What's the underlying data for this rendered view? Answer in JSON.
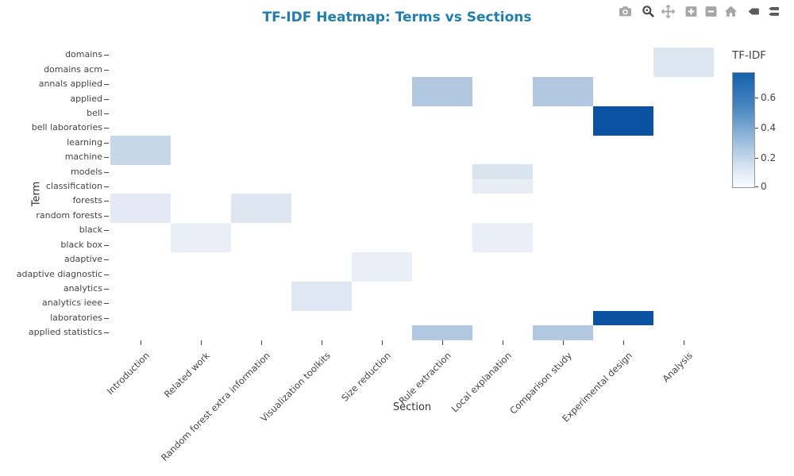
{
  "title": "TF-IDF Heatmap: Terms vs Sections",
  "modebar": {
    "icons": [
      "camera",
      "zoom",
      "pan",
      "zoom-in",
      "zoom-out",
      "home",
      "hover-closest",
      "hover-compare"
    ]
  },
  "chart_data": {
    "type": "heatmap",
    "title": "TF-IDF Heatmap: Terms vs Sections",
    "xlabel": "Section",
    "ylabel": "Term",
    "x_categories": [
      "Introduction",
      "Related work",
      "Random forest extra information",
      "Visualization toolkits",
      "Size reduction",
      "Rule extraction",
      "Local explanation",
      "Comparison study",
      "Experimental design",
      "Analysis"
    ],
    "y_categories": [
      "domains",
      "domains acm",
      "annals applied",
      "applied",
      "bell",
      "bell laboratories",
      "learning",
      "machine",
      "models",
      "classification",
      "forests",
      "random forests",
      "black",
      "black box",
      "adaptive",
      "adaptive diagnostic",
      "analytics",
      "analytics ieee",
      "laboratories",
      "applied statistics"
    ],
    "colorbar": {
      "title": "TF-IDF",
      "ticks": [
        "0.6",
        "0.4",
        "0.2",
        "0"
      ],
      "range": [
        0,
        0.8
      ]
    },
    "colorscale": {
      "name": "Blues",
      "min_color": "#f7fbff",
      "max_color": "#0b53a2"
    },
    "background_value": 0,
    "background_color": "#ffffff",
    "cells": [
      {
        "term": "domains",
        "section": "Analysis",
        "value": 0.15,
        "color": "#dce6f0"
      },
      {
        "term": "domains acm",
        "section": "Analysis",
        "value": 0.15,
        "color": "#dce6f0"
      },
      {
        "term": "annals applied",
        "section": "Rule extraction",
        "value": 0.35,
        "color": "#b2c8e1"
      },
      {
        "term": "applied",
        "section": "Rule extraction",
        "value": 0.35,
        "color": "#b2c8e1"
      },
      {
        "term": "annals applied",
        "section": "Comparison study",
        "value": 0.35,
        "color": "#b2c8e1"
      },
      {
        "term": "applied",
        "section": "Comparison study",
        "value": 0.35,
        "color": "#b2c8e1"
      },
      {
        "term": "bell",
        "section": "Experimental design",
        "value": 0.75,
        "color": "#0b53a2"
      },
      {
        "term": "bell laboratories",
        "section": "Experimental design",
        "value": 0.75,
        "color": "#0b53a2"
      },
      {
        "term": "learning",
        "section": "Introduction",
        "value": 0.27,
        "color": "#c8d7e8"
      },
      {
        "term": "machine",
        "section": "Introduction",
        "value": 0.27,
        "color": "#c8d7e8"
      },
      {
        "term": "models",
        "section": "Local explanation",
        "value": 0.17,
        "color": "#dae4ee"
      },
      {
        "term": "classification",
        "section": "Local explanation",
        "value": 0.09,
        "color": "#e7ecf5"
      },
      {
        "term": "forests",
        "section": "Introduction",
        "value": 0.11,
        "color": "#e3eaf3"
      },
      {
        "term": "random forests",
        "section": "Introduction",
        "value": 0.11,
        "color": "#e3eaf3"
      },
      {
        "term": "forests",
        "section": "Random forest extra information",
        "value": 0.14,
        "color": "#dee7f1"
      },
      {
        "term": "random forests",
        "section": "Random forest extra information",
        "value": 0.14,
        "color": "#dee7f1"
      },
      {
        "term": "black",
        "section": "Related work",
        "value": 0.07,
        "color": "#eaeef6"
      },
      {
        "term": "black box",
        "section": "Related work",
        "value": 0.07,
        "color": "#eaeef6"
      },
      {
        "term": "black",
        "section": "Local explanation",
        "value": 0.08,
        "color": "#e9eef7"
      },
      {
        "term": "black box",
        "section": "Local explanation",
        "value": 0.08,
        "color": "#e9eef7"
      },
      {
        "term": "adaptive",
        "section": "Size reduction",
        "value": 0.08,
        "color": "#e9eef7"
      },
      {
        "term": "adaptive diagnostic",
        "section": "Size reduction",
        "value": 0.08,
        "color": "#e9eef7"
      },
      {
        "term": "analytics",
        "section": "Visualization toolkits",
        "value": 0.13,
        "color": "#dfe7f2"
      },
      {
        "term": "analytics ieee",
        "section": "Visualization toolkits",
        "value": 0.13,
        "color": "#dfe7f2"
      },
      {
        "term": "laboratories",
        "section": "Experimental design",
        "value": 0.75,
        "color": "#0b53a2"
      },
      {
        "term": "applied statistics",
        "section": "Rule extraction",
        "value": 0.35,
        "color": "#b2c8e1"
      },
      {
        "term": "applied statistics",
        "section": "Comparison study",
        "value": 0.35,
        "color": "#b2c8e1"
      }
    ]
  }
}
